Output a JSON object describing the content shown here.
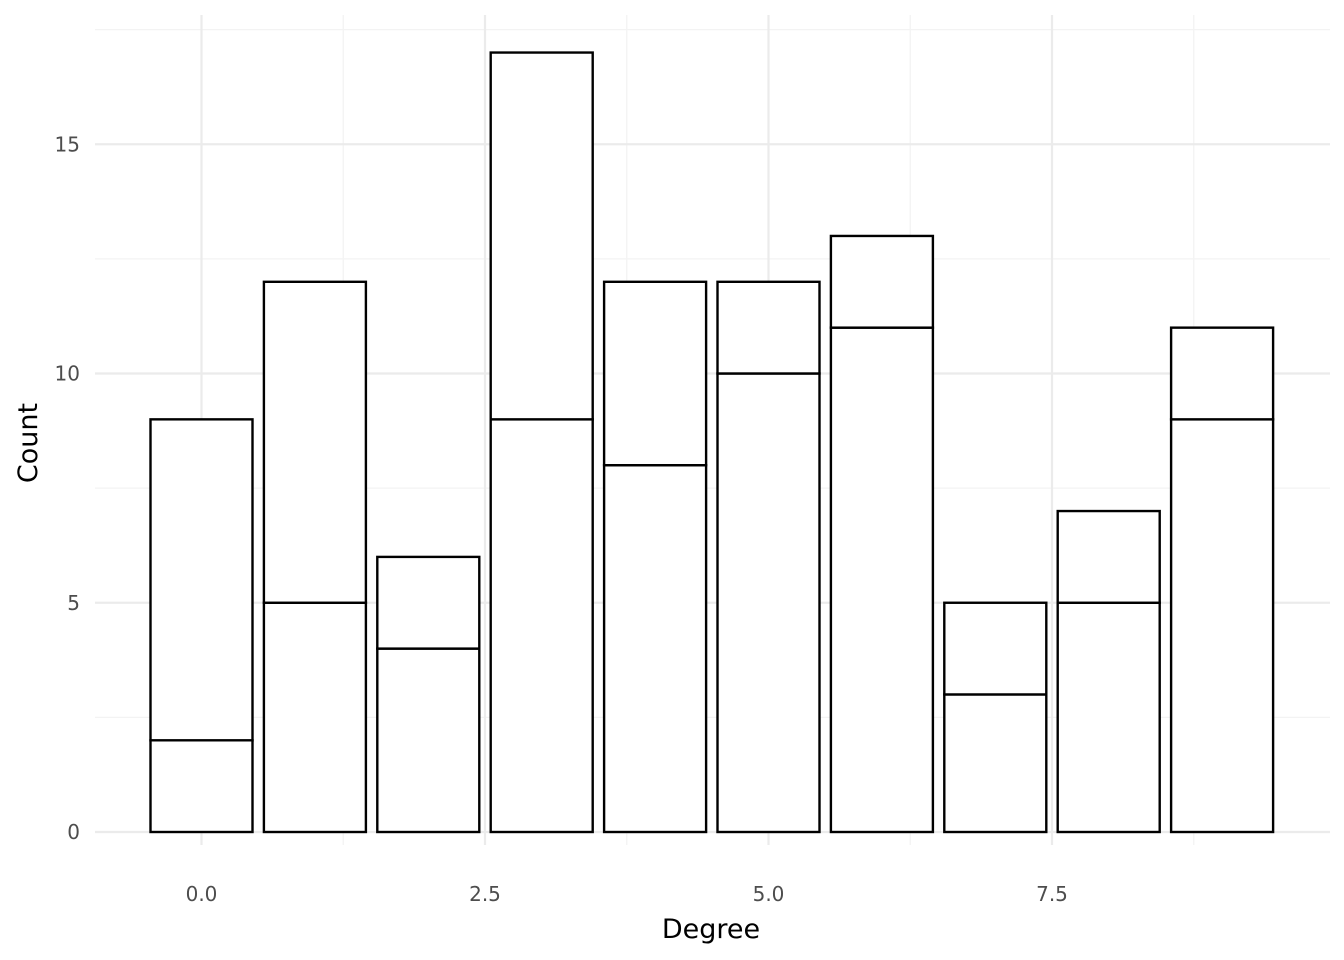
{
  "chart_data": {
    "type": "bar",
    "stacked": true,
    "fill_color": "#ffffff",
    "outline_color": "#000000",
    "grid": true,
    "title": "",
    "xlabel": "Degree",
    "ylabel": "Count",
    "xlim": [
      -0.6,
      9.6
    ],
    "ylim": [
      0,
      17.4
    ],
    "x_ticks": [
      0.0,
      2.5,
      5.0,
      7.5
    ],
    "x_tick_labels": [
      "0.0",
      "2.5",
      "5.0",
      "7.5"
    ],
    "y_ticks": [
      0,
      5,
      10,
      15
    ],
    "y_tick_labels": [
      "0",
      "5",
      "10",
      "15"
    ],
    "x": [
      0,
      1,
      2,
      3,
      4,
      5,
      6,
      7,
      8,
      9
    ],
    "series": [
      {
        "values": [
          2,
          5,
          4,
          9,
          8,
          10,
          11,
          3,
          5,
          9
        ]
      },
      {
        "values": [
          7,
          7,
          2,
          8,
          4,
          2,
          2,
          2,
          2,
          2
        ]
      }
    ],
    "totals": [
      9,
      12,
      6,
      17,
      12,
      12,
      13,
      5,
      7,
      11
    ]
  }
}
